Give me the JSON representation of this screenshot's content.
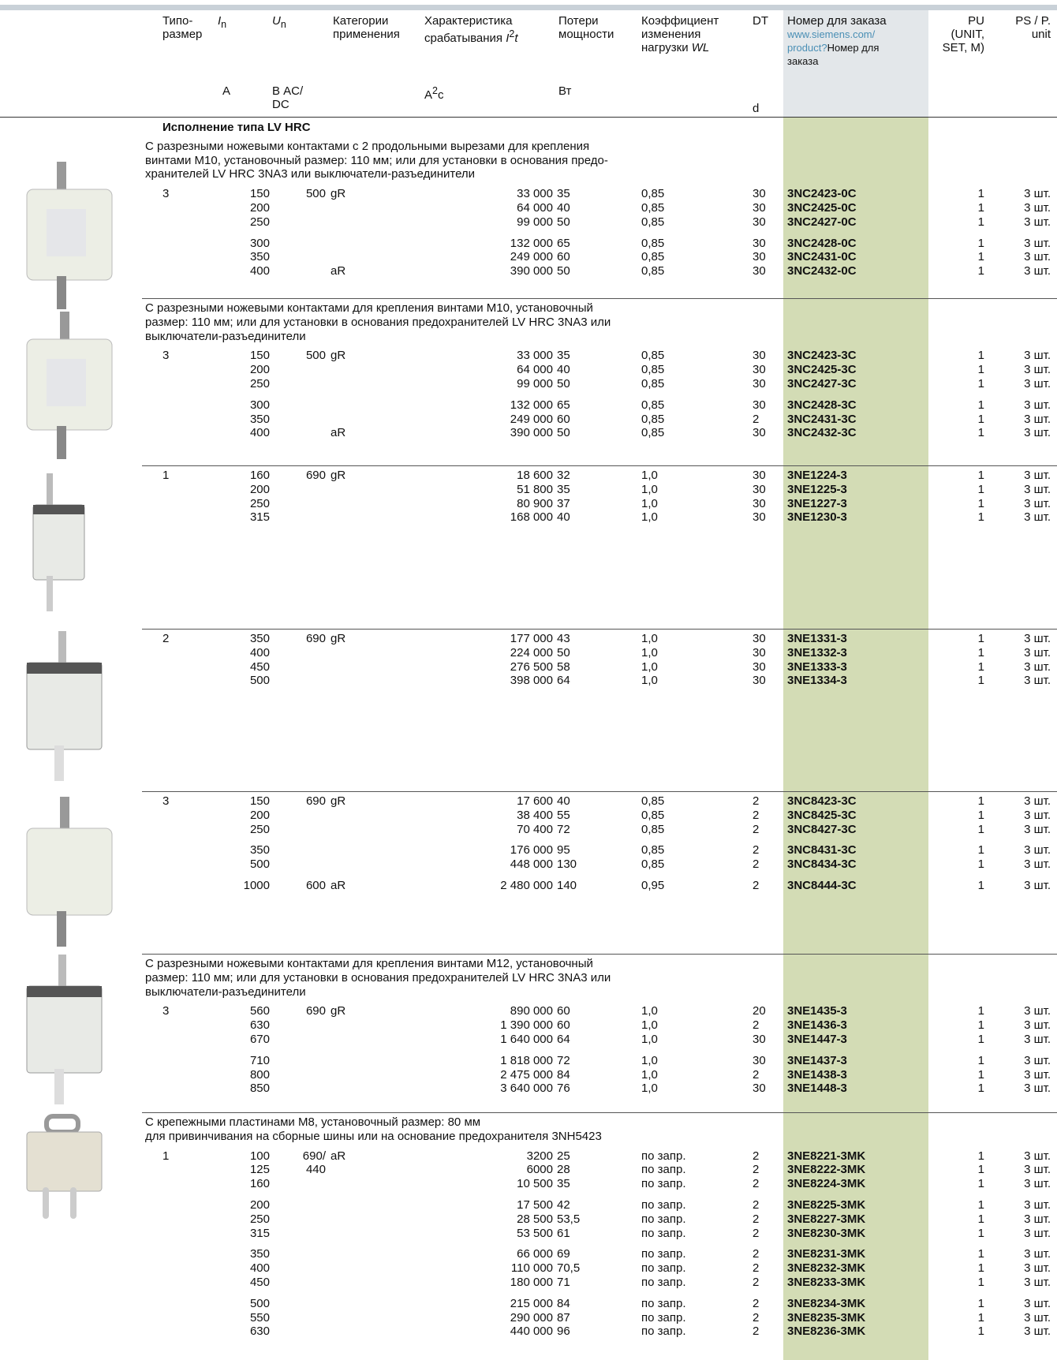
{
  "header": {
    "type": "Типо-\nразмер",
    "in": {
      "sym": "I",
      "sub": "n",
      "unit": "A"
    },
    "un": {
      "sym": "U",
      "sub": "n",
      "unit": "В AC/\nDC"
    },
    "cat": "Категории\nприменения",
    "i2t": {
      "text": "Характеристика\nсрабатывания ",
      "sym": "I",
      "sup": "2",
      "sym2": "t",
      "unit": "A",
      "unit_sup": "2",
      "unit2": "c"
    },
    "loss": {
      "text": "Потери\nмощности",
      "unit": "Вт"
    },
    "wl": {
      "text": "Коэффициент\nизменения\nнагрузки ",
      "sym": "WL"
    },
    "dt": {
      "text": "DT",
      "unit": "d"
    },
    "order": {
      "text": "Номер для заказа",
      "link": "www.siemens.com/\nproduct?",
      "text2": "Номер для\nзаказа"
    },
    "pu": "PU\n(UNIT,\nSET, M)",
    "ps": "PS / P.\nunit"
  },
  "groups": [
    {
      "title": "Исполнение типа LV HRC",
      "desc": [
        "С разрезными ножевыми контактами с 2 продольными вырезами для крепления",
        "винтами M10, установочный размер: 110 мм; или для установки в основания предо-",
        "хранителей LV HRC 3NA3 или выключатели-разъединители"
      ],
      "blocks": [
        [
          {
            "t": "3",
            "in": "150",
            "un": "500",
            "cat": "gR",
            "i2t": "33 000",
            "p": "35",
            "wl": "0,85",
            "dt": "30",
            "ord": "3NC2423-0C",
            "pu": "1",
            "ps": "3 шт."
          },
          {
            "in": "200",
            "i2t": "64 000",
            "p": "40",
            "wl": "0,85",
            "dt": "30",
            "ord": "3NC2425-0C",
            "pu": "1",
            "ps": "3 шт."
          },
          {
            "in": "250",
            "i2t": "99 000",
            "p": "50",
            "wl": "0,85",
            "dt": "30",
            "ord": "3NC2427-0C",
            "pu": "1",
            "ps": "3 шт."
          }
        ],
        [
          {
            "in": "300",
            "i2t": "132 000",
            "p": "65",
            "wl": "0,85",
            "dt": "30",
            "ord": "3NC2428-0C",
            "pu": "1",
            "ps": "3 шт."
          },
          {
            "in": "350",
            "i2t": "249 000",
            "p": "60",
            "wl": "0,85",
            "dt": "30",
            "ord": "3NC2431-0C",
            "pu": "1",
            "ps": "3 шт."
          },
          {
            "in": "400",
            "cat": "aR",
            "i2t": "390 000",
            "p": "50",
            "wl": "0,85",
            "dt": "30",
            "ord": "3NC2432-0C",
            "pu": "1",
            "ps": "3 шт."
          }
        ]
      ]
    },
    {
      "desc": [
        "С разрезными ножевыми контактами для крепления винтами M10, установочный",
        "размер: 110 мм; или для установки в основания предохранителей LV HRC 3NA3 или",
        "выключатели-разъединители"
      ],
      "blocks": [
        [
          {
            "t": "3",
            "in": "150",
            "un": "500",
            "cat": "gR",
            "i2t": "33 000",
            "p": "35",
            "wl": "0,85",
            "dt": "30",
            "ord": "3NC2423-3C",
            "pu": "1",
            "ps": "3 шт."
          },
          {
            "in": "200",
            "i2t": "64 000",
            "p": "40",
            "wl": "0,85",
            "dt": "30",
            "ord": "3NC2425-3C",
            "pu": "1",
            "ps": "3 шт."
          },
          {
            "in": "250",
            "i2t": "99 000",
            "p": "50",
            "wl": "0,85",
            "dt": "30",
            "ord": "3NC2427-3C",
            "pu": "1",
            "ps": "3 шт."
          }
        ],
        [
          {
            "in": "300",
            "i2t": "132 000",
            "p": "65",
            "wl": "0,85",
            "dt": "30",
            "ord": "3NC2428-3C",
            "pu": "1",
            "ps": "3 шт."
          },
          {
            "in": "350",
            "i2t": "249 000",
            "p": "60",
            "wl": "0,85",
            "dt": "2",
            "ord": "3NC2431-3C",
            "pu": "1",
            "ps": "3 шт."
          },
          {
            "in": "400",
            "cat": "aR",
            "i2t": "390 000",
            "p": "50",
            "wl": "0,85",
            "dt": "30",
            "ord": "3NC2432-3C",
            "pu": "1",
            "ps": "3 шт."
          }
        ]
      ]
    },
    {
      "blocks": [
        [
          {
            "t": "1",
            "in": "160",
            "un": "690",
            "cat": "gR",
            "i2t": "18 600",
            "p": "32",
            "wl": "1,0",
            "dt": "30",
            "ord": "3NE1224-3",
            "pu": "1",
            "ps": "3 шт."
          },
          {
            "in": "200",
            "i2t": "51 800",
            "p": "35",
            "wl": "1,0",
            "dt": "30",
            "ord": "3NE1225-3",
            "pu": "1",
            "ps": "3 шт."
          },
          {
            "in": "250",
            "i2t": "80 900",
            "p": "37",
            "wl": "1,0",
            "dt": "30",
            "ord": "3NE1227-3",
            "pu": "1",
            "ps": "3 шт."
          },
          {
            "in": "315",
            "i2t": "168 000",
            "p": "40",
            "wl": "1,0",
            "dt": "30",
            "ord": "3NE1230-3",
            "pu": "1",
            "ps": "3 шт."
          }
        ]
      ]
    },
    {
      "blocks": [
        [
          {
            "t": "2",
            "in": "350",
            "un": "690",
            "cat": "gR",
            "i2t": "177 000",
            "p": "43",
            "wl": "1,0",
            "dt": "30",
            "ord": "3NE1331-3",
            "pu": "1",
            "ps": "3 шт."
          },
          {
            "in": "400",
            "i2t": "224 000",
            "p": "50",
            "wl": "1,0",
            "dt": "30",
            "ord": "3NE1332-3",
            "pu": "1",
            "ps": "3 шт."
          },
          {
            "in": "450",
            "i2t": "276 500",
            "p": "58",
            "wl": "1,0",
            "dt": "30",
            "ord": "3NE1333-3",
            "pu": "1",
            "ps": "3 шт."
          },
          {
            "in": "500",
            "i2t": "398 000",
            "p": "64",
            "wl": "1,0",
            "dt": "30",
            "ord": "3NE1334-3",
            "pu": "1",
            "ps": "3 шт."
          }
        ]
      ]
    },
    {
      "blocks": [
        [
          {
            "t": "3",
            "in": "150",
            "un": "690",
            "cat": "gR",
            "i2t": "17 600",
            "p": "40",
            "wl": "0,85",
            "dt": "2",
            "ord": "3NC8423-3C",
            "pu": "1",
            "ps": "3 шт."
          },
          {
            "in": "200",
            "i2t": "38 400",
            "p": "55",
            "wl": "0,85",
            "dt": "2",
            "ord": "3NC8425-3C",
            "pu": "1",
            "ps": "3 шт."
          },
          {
            "in": "250",
            "i2t": "70 400",
            "p": "72",
            "wl": "0,85",
            "dt": "2",
            "ord": "3NC8427-3C",
            "pu": "1",
            "ps": "3 шт."
          }
        ],
        [
          {
            "in": "350",
            "i2t": "176 000",
            "p": "95",
            "wl": "0,85",
            "dt": "2",
            "ord": "3NC8431-3C",
            "pu": "1",
            "ps": "3 шт."
          },
          {
            "in": "500",
            "i2t": "448 000",
            "p": "130",
            "wl": "0,85",
            "dt": "2",
            "ord": "3NC8434-3C",
            "pu": "1",
            "ps": "3 шт."
          }
        ],
        [
          {
            "in": "1000",
            "un": "600",
            "cat": "aR",
            "i2t": "2 480 000",
            "p": "140",
            "wl": "0,95",
            "dt": "2",
            "ord": "3NC8444-3C",
            "pu": "1",
            "ps": "3 шт."
          }
        ]
      ]
    },
    {
      "desc": [
        "С разрезными ножевыми контактами для крепления винтами M12, установочный",
        "размер: 110 мм; или для установки в основания предохранителей LV HRC 3NA3 или",
        "выключатели-разъединители"
      ],
      "blocks": [
        [
          {
            "t": "3",
            "in": "560",
            "un": "690",
            "cat": "gR",
            "i2t": "890 000",
            "p": "60",
            "wl": "1,0",
            "dt": "20",
            "ord": "3NE1435-3",
            "pu": "1",
            "ps": "3 шт."
          },
          {
            "in": "630",
            "i2t": "1 390 000",
            "p": "60",
            "wl": "1,0",
            "dt": "2",
            "ord": "3NE1436-3",
            "pu": "1",
            "ps": "3 шт."
          },
          {
            "in": "670",
            "i2t": "1 640 000",
            "p": "64",
            "wl": "1,0",
            "dt": "30",
            "ord": "3NE1447-3",
            "pu": "1",
            "ps": "3 шт."
          }
        ],
        [
          {
            "in": "710",
            "i2t": "1 818 000",
            "p": "72",
            "wl": "1,0",
            "dt": "30",
            "ord": "3NE1437-3",
            "pu": "1",
            "ps": "3 шт."
          },
          {
            "in": "800",
            "i2t": "2 475 000",
            "p": "84",
            "wl": "1,0",
            "dt": "2",
            "ord": "3NE1438-3",
            "pu": "1",
            "ps": "3 шт."
          },
          {
            "in": "850",
            "i2t": "3 640 000",
            "p": "76",
            "wl": "1,0",
            "dt": "30",
            "ord": "3NE1448-3",
            "pu": "1",
            "ps": "3 шт."
          }
        ]
      ]
    },
    {
      "desc": [
        "С крепежными пластинами M8, установочный размер: 80 мм",
        "для привинчивания на сборные шины или на основание предохранителя 3NH5423"
      ],
      "blocks": [
        [
          {
            "t": "1",
            "in": "100",
            "un": "690/",
            "cat": "aR",
            "i2t": "3200",
            "p": "25",
            "wl": "по запр.",
            "dt": "2",
            "ord": "3NE8221-3MK",
            "pu": "1",
            "ps": "3 шт."
          },
          {
            "in": "125",
            "un": "440",
            "i2t": "6000",
            "p": "28",
            "wl": "по запр.",
            "dt": "2",
            "ord": "3NE8222-3MK",
            "pu": "1",
            "ps": "3 шт."
          },
          {
            "in": "160",
            "i2t": "10 500",
            "p": "35",
            "wl": "по запр.",
            "dt": "2",
            "ord": "3NE8224-3MK",
            "pu": "1",
            "ps": "3 шт."
          }
        ],
        [
          {
            "in": "200",
            "i2t": "17 500",
            "p": "42",
            "wl": "по запр.",
            "dt": "2",
            "ord": "3NE8225-3MK",
            "pu": "1",
            "ps": "3 шт."
          },
          {
            "in": "250",
            "i2t": "28 500",
            "p": "53,5",
            "wl": "по запр.",
            "dt": "2",
            "ord": "3NE8227-3MK",
            "pu": "1",
            "ps": "3 шт."
          },
          {
            "in": "315",
            "i2t": "53 500",
            "p": "61",
            "wl": "по запр.",
            "dt": "2",
            "ord": "3NE8230-3MK",
            "pu": "1",
            "ps": "3 шт."
          }
        ],
        [
          {
            "in": "350",
            "i2t": "66 000",
            "p": "69",
            "wl": "по запр.",
            "dt": "2",
            "ord": "3NE8231-3MK",
            "pu": "1",
            "ps": "3 шт."
          },
          {
            "in": "400",
            "i2t": "110 000",
            "p": "70,5",
            "wl": "по запр.",
            "dt": "2",
            "ord": "3NE8232-3MK",
            "pu": "1",
            "ps": "3 шт."
          },
          {
            "in": "450",
            "i2t": "180 000",
            "p": "71",
            "wl": "по запр.",
            "dt": "2",
            "ord": "3NE8233-3MK",
            "pu": "1",
            "ps": "3 шт."
          }
        ],
        [
          {
            "in": "500",
            "i2t": "215 000",
            "p": "84",
            "wl": "по запр.",
            "dt": "2",
            "ord": "3NE8234-3MK",
            "pu": "1",
            "ps": "3 шт."
          },
          {
            "in": "550",
            "i2t": "290 000",
            "p": "87",
            "wl": "по запр.",
            "dt": "2",
            "ord": "3NE8235-3MK",
            "pu": "1",
            "ps": "3 шт."
          },
          {
            "in": "630",
            "i2t": "440 000",
            "p": "96",
            "wl": "по запр.",
            "dt": "2",
            "ord": "3NE8236-3MK",
            "pu": "1",
            "ps": "3 шт."
          }
        ]
      ]
    }
  ]
}
